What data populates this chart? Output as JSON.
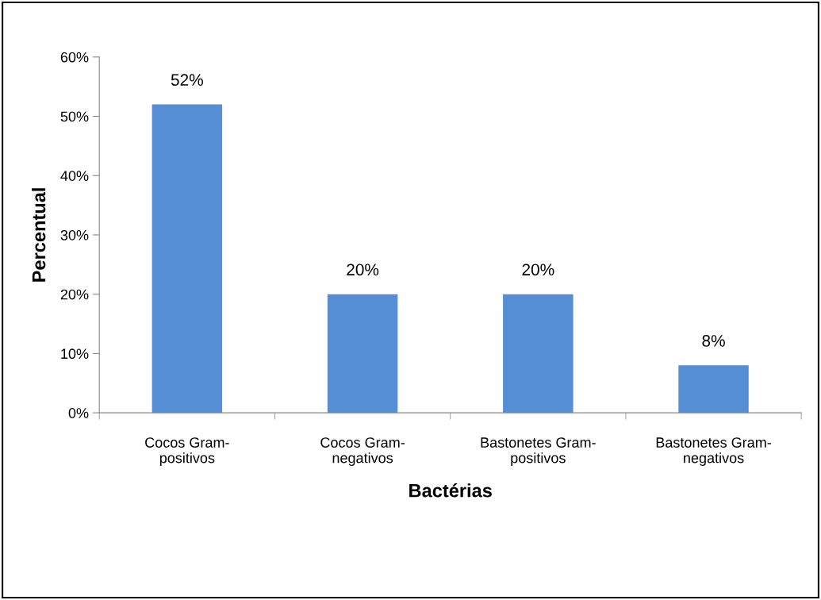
{
  "chart_data": {
    "type": "bar",
    "categories": [
      "Cocos Gram-\npositivos",
      "Cocos Gram-\nnegativos",
      "Bastonetes Gram-\npositivos",
      "Bastonetes Gram-\nnegativos"
    ],
    "values": [
      52,
      20,
      20,
      8
    ],
    "value_labels": [
      "52%",
      "20%",
      "20%",
      "8%"
    ],
    "color": "#558ed5",
    "xlabel": "Bactérias",
    "ylabel": "Percentual",
    "ylim": [
      0,
      60
    ],
    "yticks": [
      {
        "value": 0,
        "label": "0%"
      },
      {
        "value": 10,
        "label": "10%"
      },
      {
        "value": 20,
        "label": "20%"
      },
      {
        "value": 30,
        "label": "30%"
      },
      {
        "value": 40,
        "label": "40%"
      },
      {
        "value": 50,
        "label": "50%"
      },
      {
        "value": 60,
        "label": "60%"
      }
    ],
    "grid": false,
    "legend": false
  }
}
